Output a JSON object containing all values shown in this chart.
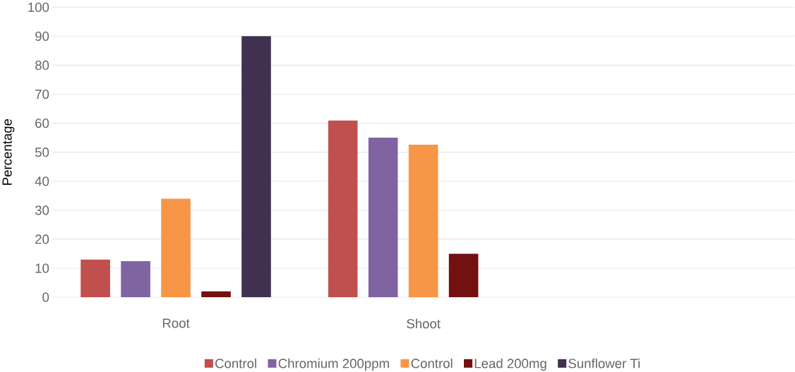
{
  "chart_data": {
    "type": "bar",
    "ylabel": "Percentage",
    "categories": [
      "Root",
      "Shoot",
      null
    ],
    "series": [
      {
        "name": "Control",
        "color": "#c0504d",
        "values": [
          13,
          61,
          null
        ]
      },
      {
        "name": "Chromium 200ppm",
        "color": "#8064a2",
        "values": [
          12.4,
          55,
          null
        ]
      },
      {
        "name": "Control",
        "color": "#f79646",
        "values": [
          34,
          52.6,
          null
        ]
      },
      {
        "name": "Lead 200mg",
        "color": "#731010",
        "values": [
          2,
          15,
          null
        ]
      },
      {
        "name": "Sunflower Ti",
        "color": "#403151",
        "values": [
          90,
          null,
          null
        ]
      }
    ],
    "ylim": [
      0,
      100
    ],
    "yticks": [
      0,
      10,
      20,
      30,
      40,
      50,
      60,
      70,
      80,
      90,
      100
    ],
    "grid": "y",
    "legend": "bottom"
  }
}
